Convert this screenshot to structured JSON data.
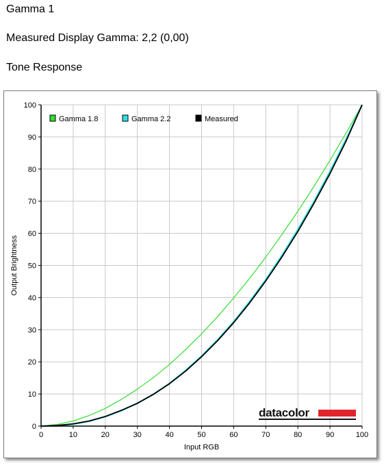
{
  "header": {
    "title": "Gamma 1",
    "measured_gamma": "Measured Display Gamma: 2,2 (0,00)",
    "section": "Tone Response"
  },
  "logo": {
    "text": "datacolor",
    "text_color": "#111111",
    "bar_color": "#e0252b"
  },
  "chart_data": {
    "type": "line",
    "xlabel": "Input RGB",
    "ylabel": "Output Brightness",
    "xlim": [
      0,
      100
    ],
    "ylim": [
      0,
      100
    ],
    "xticks": [
      0,
      10,
      20,
      30,
      40,
      50,
      60,
      70,
      80,
      90,
      100
    ],
    "yticks": [
      0,
      10,
      20,
      30,
      40,
      50,
      60,
      70,
      80,
      90,
      100
    ],
    "grid": true,
    "legend_position": "top-left",
    "series": [
      {
        "name": "Gamma 1.8",
        "color": "#33dd33",
        "x": [
          0,
          5,
          10,
          15,
          20,
          25,
          30,
          35,
          40,
          45,
          50,
          55,
          60,
          65,
          70,
          75,
          80,
          85,
          90,
          95,
          100
        ],
        "y": [
          0,
          0.5,
          1.6,
          3.3,
          5.5,
          8.3,
          11.5,
          15.1,
          19.2,
          23.8,
          28.7,
          34.1,
          39.9,
          46.0,
          52.6,
          59.6,
          66.9,
          74.6,
          82.7,
          91.2,
          100
        ]
      },
      {
        "name": "Gamma 2.2",
        "color": "#33dddd",
        "x": [
          0,
          5,
          10,
          15,
          20,
          25,
          30,
          35,
          40,
          45,
          50,
          55,
          60,
          65,
          70,
          75,
          80,
          85,
          90,
          95,
          100
        ],
        "y": [
          0,
          0.1,
          0.6,
          1.5,
          2.9,
          4.8,
          7.1,
          9.9,
          13.3,
          17.3,
          21.8,
          26.9,
          32.5,
          38.8,
          45.6,
          53.1,
          61.2,
          69.9,
          79.3,
          89.3,
          100
        ]
      },
      {
        "name": "Measured",
        "color": "#000000",
        "x": [
          0,
          5,
          10,
          15,
          20,
          25,
          30,
          35,
          40,
          45,
          50,
          55,
          60,
          65,
          70,
          75,
          80,
          85,
          90,
          95,
          100
        ],
        "y": [
          0,
          0.2,
          0.7,
          1.6,
          3.0,
          4.9,
          7.1,
          9.9,
          13.2,
          17.1,
          21.6,
          26.6,
          32.2,
          38.4,
          45.2,
          52.6,
          60.6,
          69.3,
          78.6,
          88.7,
          100
        ]
      }
    ]
  }
}
